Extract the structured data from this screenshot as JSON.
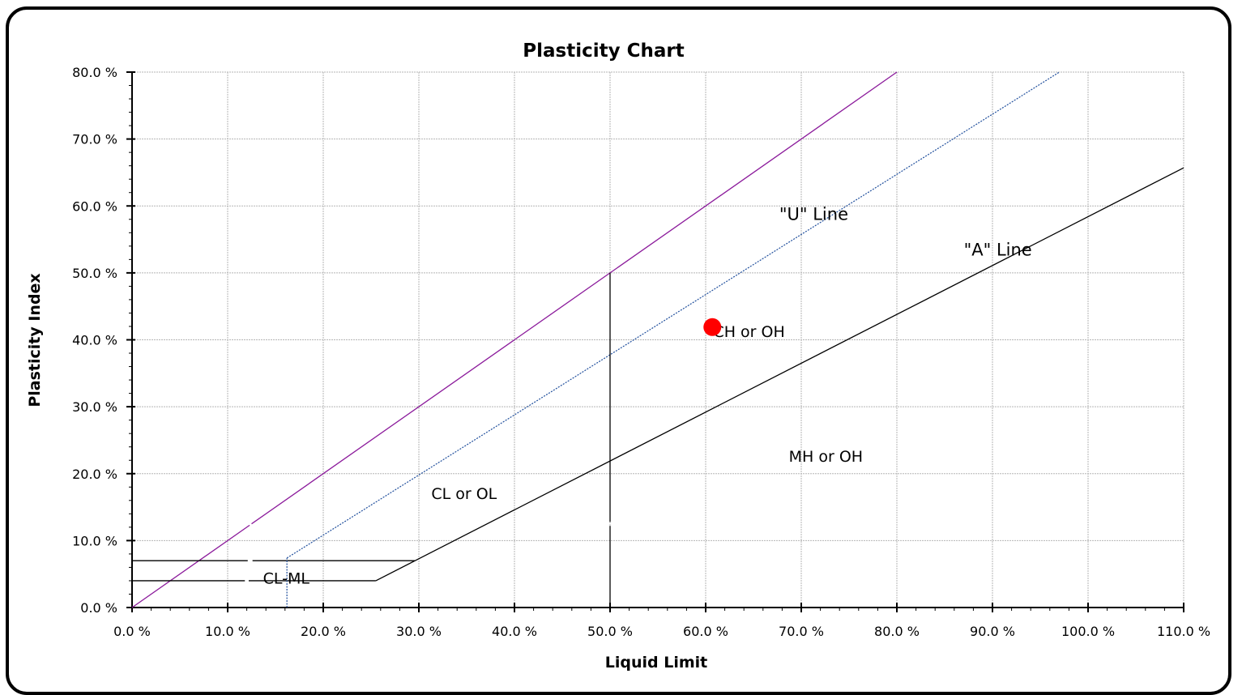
{
  "chart_data": {
    "type": "scatter",
    "title": "Plasticity Chart",
    "xlabel": "Liquid Limit",
    "ylabel": "Plasticity Index",
    "xlim": [
      0,
      110
    ],
    "ylim": [
      0,
      80
    ],
    "x_ticks": [
      "0.0 %",
      "10.0 %",
      "20.0 %",
      "30.0 %",
      "40.0 %",
      "50.0 %",
      "60.0 %",
      "70.0 %",
      "80.0 %",
      "90.0 %",
      "100.0 %",
      "110.0 %"
    ],
    "y_ticks": [
      "0.0 %",
      "10.0 %",
      "20.0 %",
      "30.0 %",
      "40.0 %",
      "50.0 %",
      "60.0 %",
      "70.0 %",
      "80.0 %"
    ],
    "x_tick_values": [
      0,
      10,
      20,
      30,
      40,
      50,
      60,
      70,
      80,
      90,
      100,
      110
    ],
    "y_tick_values": [
      0,
      10,
      20,
      30,
      40,
      50,
      60,
      70,
      80
    ],
    "grid": true,
    "lines": [
      {
        "id": "upper-bound-line",
        "color": "#8b1a9b",
        "style": "solid",
        "points": [
          [
            0,
            0
          ],
          [
            12.3,
            12.3
          ]
        ]
      },
      {
        "id": "upper-bound-line-2",
        "color": "#8b1a9b",
        "style": "solid",
        "points": [
          [
            12.5,
            12.5
          ],
          [
            80,
            80
          ]
        ]
      },
      {
        "id": "u-line",
        "color": "#1f4e9c",
        "style": "dotted",
        "points": [
          [
            16.2,
            7.4
          ],
          [
            97,
            80
          ]
        ]
      },
      {
        "id": "a-line",
        "color": "#000000",
        "style": "solid",
        "points": [
          [
            25.5,
            4
          ],
          [
            29.6,
            7
          ],
          [
            110,
            65.7
          ]
        ]
      },
      {
        "id": "cl-ml-upper",
        "color": "#000000",
        "style": "solid",
        "points": [
          [
            0,
            7
          ],
          [
            12.1,
            7
          ]
        ]
      },
      {
        "id": "cl-ml-upper-2",
        "color": "#000000",
        "style": "solid",
        "points": [
          [
            12.6,
            7
          ],
          [
            29.6,
            7
          ]
        ]
      },
      {
        "id": "cl-ml-lower",
        "color": "#000000",
        "style": "solid",
        "points": [
          [
            0,
            4
          ],
          [
            11.8,
            4
          ]
        ]
      },
      {
        "id": "cl-ml-lower-2",
        "color": "#000000",
        "style": "solid",
        "points": [
          [
            12.2,
            4
          ],
          [
            25.5,
            4
          ]
        ]
      },
      {
        "id": "ll-50-line",
        "color": "#000000",
        "style": "solid",
        "points": [
          [
            50,
            0
          ],
          [
            50,
            12.2
          ]
        ]
      },
      {
        "id": "ll-50-line-2",
        "color": "#000000",
        "style": "solid",
        "points": [
          [
            50,
            12.8
          ],
          [
            50,
            50
          ]
        ]
      },
      {
        "id": "u-line-base",
        "color": "#1f4e9c",
        "style": "dotted",
        "points": [
          [
            16.2,
            0
          ],
          [
            16.2,
            7.4
          ]
        ]
      }
    ],
    "points": [
      {
        "x": 60.7,
        "y": 41.9,
        "color": "#ff0000"
      }
    ],
    "annotations": [
      {
        "text": "\"U\" Line",
        "x": 67.7,
        "y": 57.9,
        "size": "large"
      },
      {
        "text": "\"A\" Line",
        "x": 87.0,
        "y": 52.6,
        "size": "large"
      },
      {
        "text": "CH or OH",
        "x": 60.8,
        "y": 40.4,
        "size": "normal"
      },
      {
        "text": "CL or OL",
        "x": 31.3,
        "y": 16.2,
        "size": "normal"
      },
      {
        "text": "MH or OH",
        "x": 68.7,
        "y": 21.8,
        "size": "normal"
      },
      {
        "text": "CL-ML",
        "x": 13.7,
        "y": 3.6,
        "size": "normal"
      }
    ]
  }
}
